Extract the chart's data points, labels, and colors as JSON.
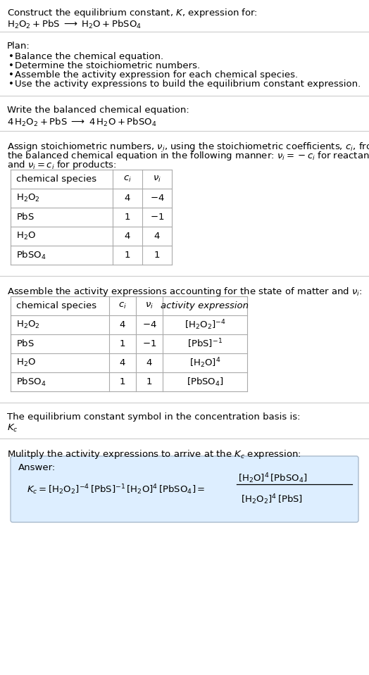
{
  "title_line1": "Construct the equilibrium constant, $K$, expression for:",
  "title_line2": "$\\mathrm{H_2O_2 + PbS \\;\\longrightarrow\\; H_2O + PbSO_4}$",
  "plan_header": "Plan:",
  "plan_bullets": [
    "Balance the chemical equation.",
    "Determine the stoichiometric numbers.",
    "Assemble the activity expression for each chemical species.",
    "Use the activity expressions to build the equilibrium constant expression."
  ],
  "balanced_header": "Write the balanced chemical equation:",
  "balanced_eq": "$\\mathrm{4\\,H_2O_2 + PbS \\;\\longrightarrow\\; 4\\,H_2O + PbSO_4}$",
  "stoich_header1": "Assign stoichiometric numbers, $\\nu_i$, using the stoichiometric coefficients, $c_i$, from",
  "stoich_header2": "the balanced chemical equation in the following manner: $\\nu_i = -c_i$ for reactants",
  "stoich_header3": "and $\\nu_i = c_i$ for products:",
  "table1_cols": [
    "chemical species",
    "$c_i$",
    "$\\nu_i$"
  ],
  "table1_rows": [
    [
      "$\\mathrm{H_2O_2}$",
      "4",
      "$-4$"
    ],
    [
      "$\\mathrm{PbS}$",
      "1",
      "$-1$"
    ],
    [
      "$\\mathrm{H_2O}$",
      "4",
      "4"
    ],
    [
      "$\\mathrm{PbSO_4}$",
      "1",
      "1"
    ]
  ],
  "activity_header": "Assemble the activity expressions accounting for the state of matter and $\\nu_i$:",
  "table2_cols": [
    "chemical species",
    "$c_i$",
    "$\\nu_i$",
    "activity expression"
  ],
  "table2_rows": [
    [
      "$\\mathrm{H_2O_2}$",
      "4",
      "$-4$",
      "$[\\mathrm{H_2O_2}]^{-4}$"
    ],
    [
      "$\\mathrm{PbS}$",
      "1",
      "$-1$",
      "$[\\mathrm{PbS}]^{-1}$"
    ],
    [
      "$\\mathrm{H_2O}$",
      "4",
      "4",
      "$[\\mathrm{H_2O}]^4$"
    ],
    [
      "$\\mathrm{PbSO_4}$",
      "1",
      "1",
      "$[\\mathrm{PbSO_4}]$"
    ]
  ],
  "kc_header": "The equilibrium constant symbol in the concentration basis is:",
  "kc_symbol": "$K_c$",
  "multiply_header": "Mulitply the activity expressions to arrive at the $K_c$ expression:",
  "answer_label": "Answer:",
  "answer_eq_left": "$K_c = [\\mathrm{H_2O_2}]^{-4}\\,[\\mathrm{PbS}]^{-1}\\,[\\mathrm{H_2O}]^4\\,[\\mathrm{PbSO_4}] =$",
  "answer_eq_frac_num": "$[\\mathrm{H_2O}]^4\\,[\\mathrm{PbSO_4}]$",
  "answer_eq_frac_den": "$[\\mathrm{H_2O_2}]^4\\,[\\mathrm{PbS}]$",
  "bg_color": "#ffffff",
  "answer_box_color": "#ddeeff",
  "answer_box_edge": "#aabbcc",
  "hline_color": "#cccccc",
  "table_line_color": "#aaaaaa",
  "text_color": "#000000",
  "font_size": 9.5
}
